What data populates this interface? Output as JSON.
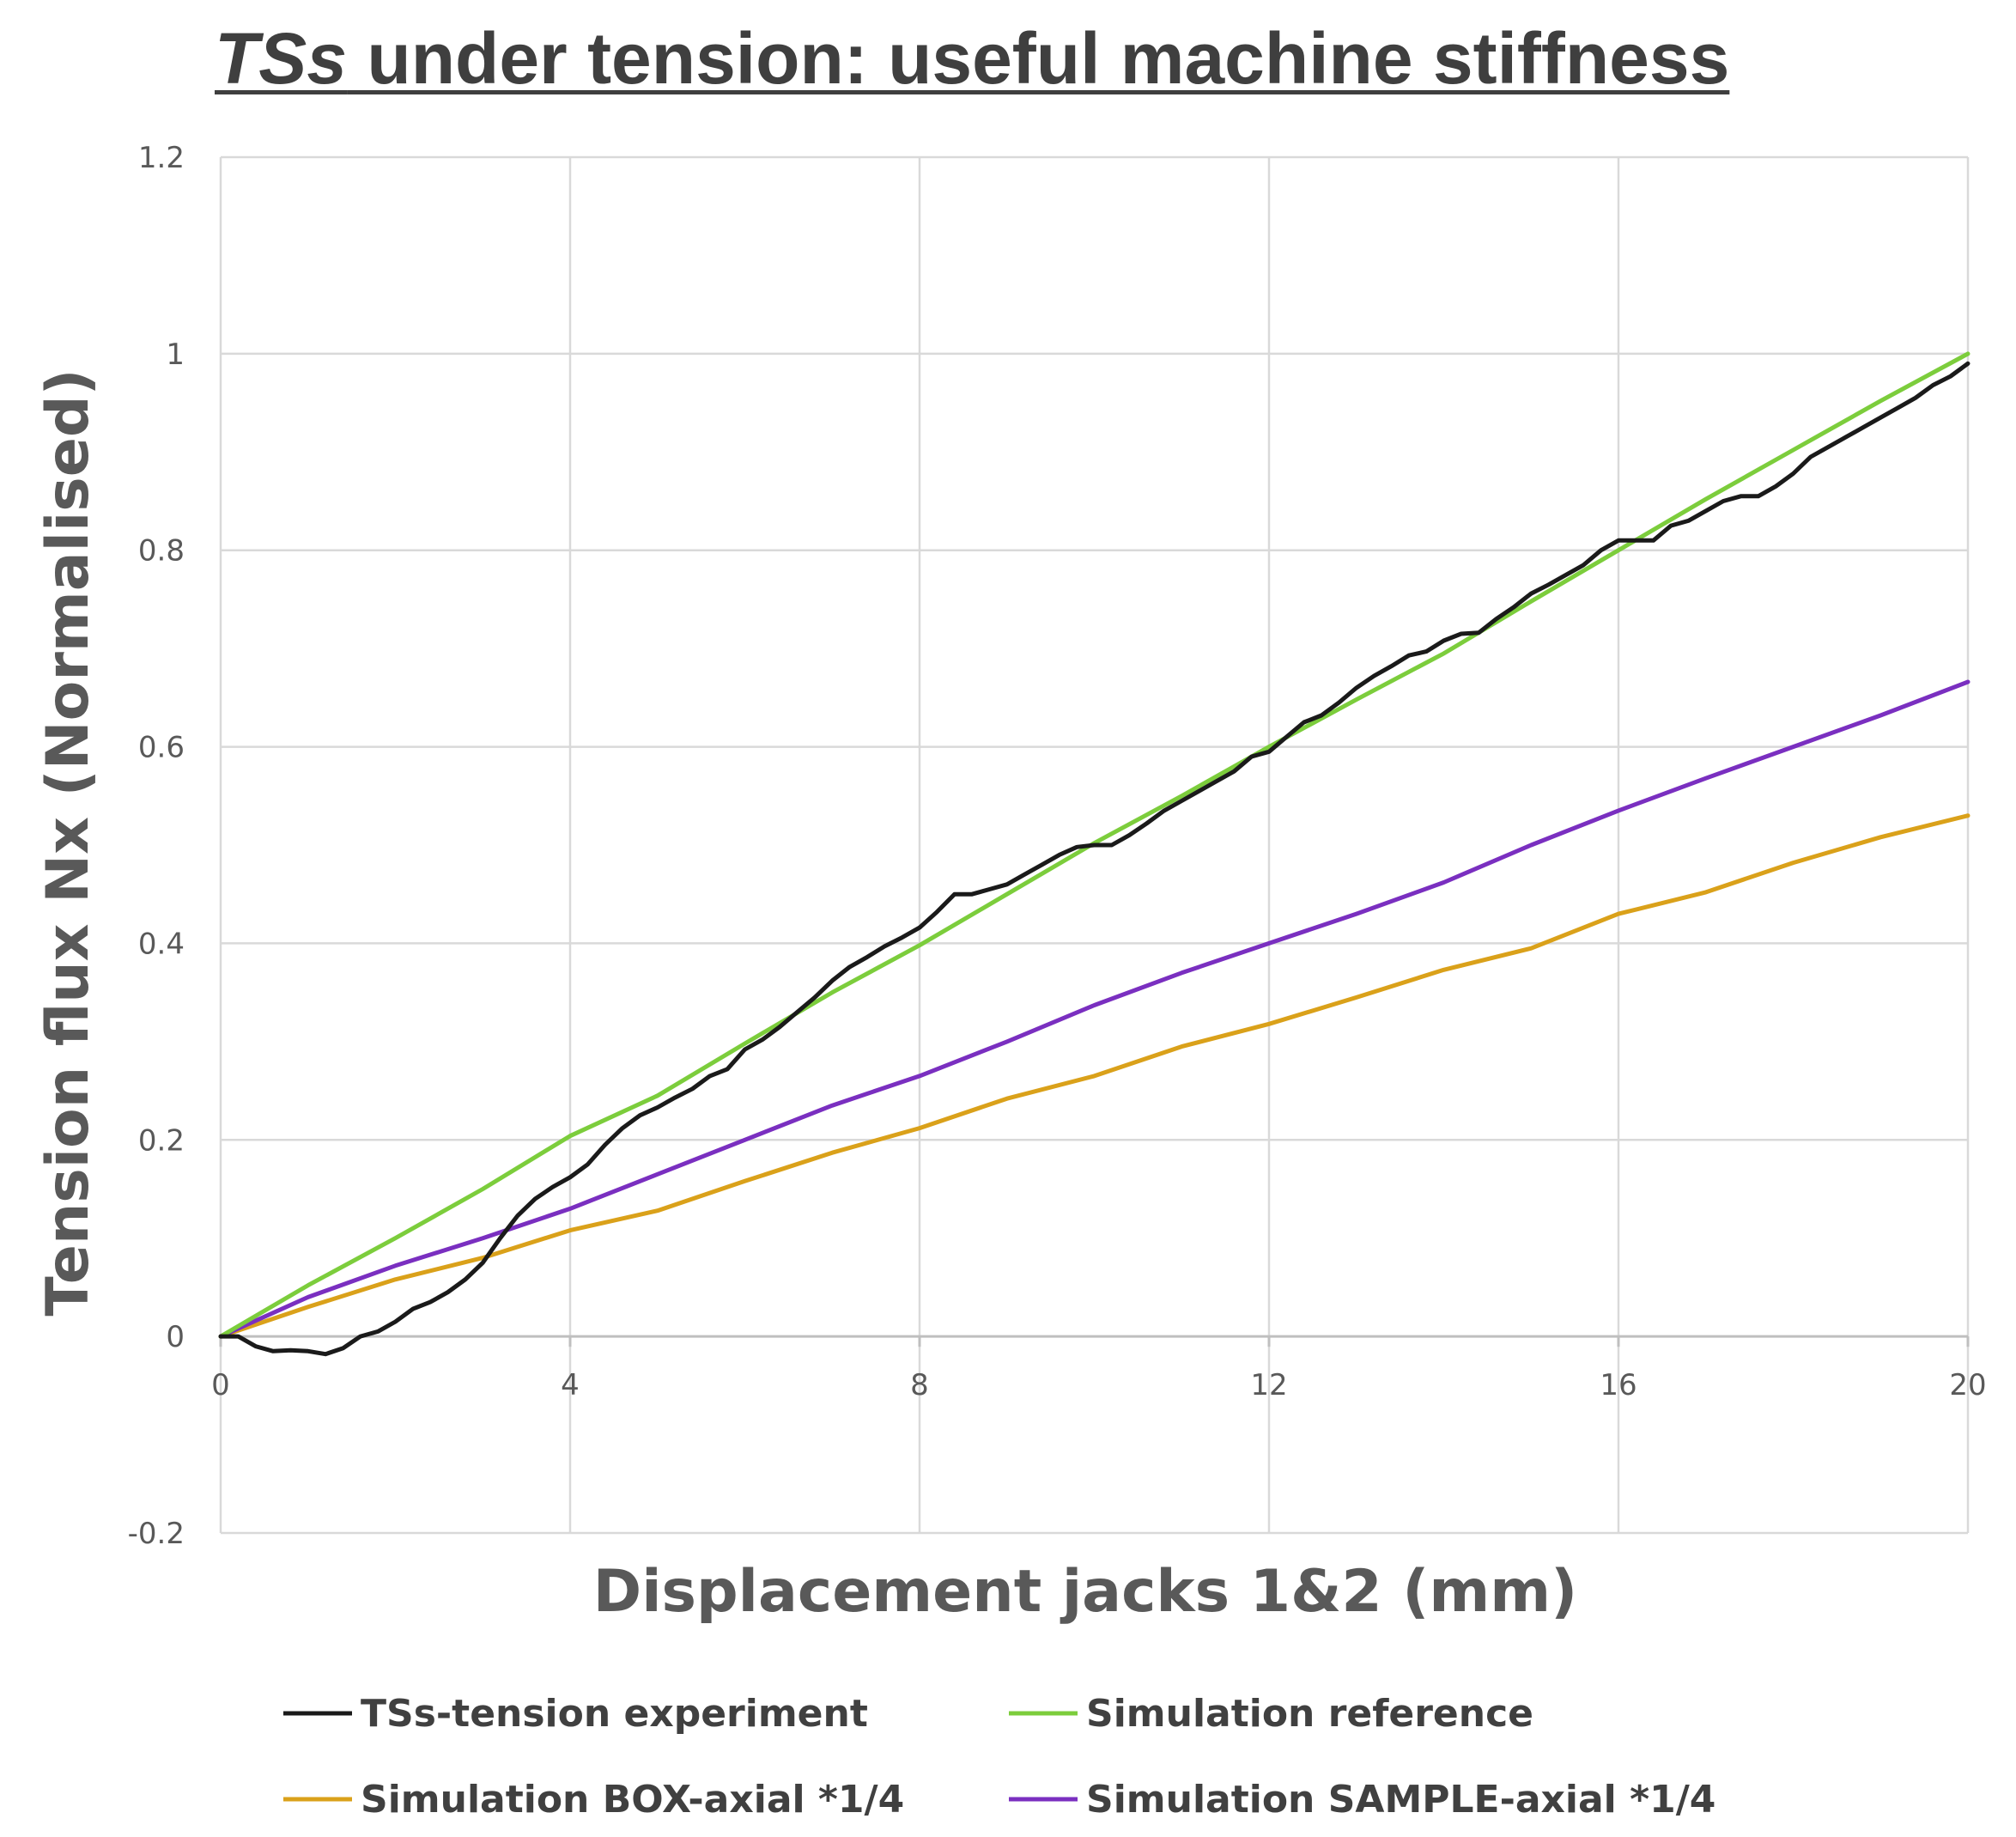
{
  "chart_data": {
    "type": "line",
    "title_italic": "TSs",
    "title_rest": " under tension: useful machine stiffness",
    "xlabel": "Displacement jacks 1&2 (mm)",
    "ylabel": "Tension flux Nx (Normalised)",
    "xlim": [
      0,
      20
    ],
    "ylim": [
      -0.2,
      1.2
    ],
    "x_ticks": [
      0,
      4,
      8,
      12,
      16,
      20
    ],
    "y_ticks": [
      -0.2,
      0,
      0.2,
      0.4,
      0.6,
      0.8,
      1,
      1.2
    ],
    "x_tick_labels": [
      "0",
      "4",
      "8",
      "12",
      "16",
      "20"
    ],
    "y_tick_labels": [
      "-0.2",
      "0",
      "0.2",
      "0.4",
      "0.6",
      "0.8",
      "1",
      "1.2"
    ],
    "grid": true,
    "legend_position": "bottom",
    "series": [
      {
        "name": "TSs-tension experiment",
        "color": "#1a1a1a",
        "x": [
          0,
          0.2,
          0.4,
          0.6,
          0.8,
          1.0,
          1.2,
          1.4,
          1.6,
          1.8,
          2.0,
          2.2,
          2.4,
          2.6,
          2.8,
          3.0,
          3.2,
          3.4,
          3.6,
          3.8,
          4.0,
          4.2,
          4.4,
          4.6,
          4.8,
          5.0,
          5.2,
          5.4,
          5.6,
          5.8,
          6.0,
          6.2,
          6.4,
          6.6,
          6.8,
          7.0,
          7.2,
          7.4,
          7.6,
          7.8,
          8.0,
          8.2,
          8.4,
          8.6,
          8.8,
          9.0,
          9.2,
          9.4,
          9.6,
          9.8,
          10.0,
          10.2,
          10.4,
          10.6,
          10.8,
          11.0,
          11.2,
          11.4,
          11.6,
          11.8,
          12.0,
          12.2,
          12.4,
          12.6,
          12.8,
          13.0,
          13.2,
          13.4,
          13.6,
          13.8,
          14.0,
          14.2,
          14.4,
          14.6,
          14.8,
          15.0,
          15.2,
          15.4,
          15.6,
          15.8,
          16.0,
          16.2,
          16.4,
          16.6,
          16.8,
          17.0,
          17.2,
          17.4,
          17.6,
          17.8,
          18.0,
          18.2,
          18.4,
          18.6,
          18.8,
          19.0,
          19.2,
          19.4,
          19.6,
          19.8,
          20.0
        ],
        "y": [
          0,
          0,
          -0.01,
          -0.015,
          -0.014,
          -0.015,
          -0.018,
          -0.012,
          0.0,
          0.005,
          0.015,
          0.028,
          0.035,
          0.045,
          0.058,
          0.075,
          0.1,
          0.123,
          0.14,
          0.152,
          0.162,
          0.175,
          0.195,
          0.212,
          0.225,
          0.233,
          0.243,
          0.252,
          0.265,
          0.272,
          0.292,
          0.302,
          0.315,
          0.33,
          0.345,
          0.362,
          0.376,
          0.386,
          0.397,
          0.406,
          0.416,
          0.432,
          0.45,
          0.45,
          0.455,
          0.46,
          0.47,
          0.48,
          0.49,
          0.498,
          0.5,
          0.5,
          0.51,
          0.522,
          0.535,
          0.545,
          0.555,
          0.565,
          0.575,
          0.59,
          0.595,
          0.61,
          0.625,
          0.632,
          0.645,
          0.66,
          0.672,
          0.682,
          0.693,
          0.697,
          0.708,
          0.715,
          0.716,
          0.73,
          0.742,
          0.756,
          0.765,
          0.775,
          0.785,
          0.8,
          0.81,
          0.81,
          0.81,
          0.825,
          0.83,
          0.84,
          0.85,
          0.855,
          0.855,
          0.865,
          0.878,
          0.895,
          0.905,
          0.915,
          0.925,
          0.935,
          0.945,
          0.955,
          0.968,
          0.977,
          0.99
        ]
      },
      {
        "name": "Simulation reference",
        "color": "#7ccd3c",
        "x": [
          0,
          1,
          2,
          3,
          4,
          5,
          6,
          7,
          8,
          9,
          10,
          11,
          12,
          13,
          14,
          15,
          16,
          17,
          18,
          19,
          20
        ],
        "y": [
          0,
          0.052,
          0.1,
          0.15,
          0.204,
          0.245,
          0.298,
          0.35,
          0.398,
          0.45,
          0.502,
          0.55,
          0.6,
          0.648,
          0.695,
          0.748,
          0.8,
          0.852,
          0.902,
          0.952,
          1.0
        ]
      },
      {
        "name": "Simulation BOX-axial *1/4",
        "color": "#daa11a",
        "x": [
          0,
          1,
          2,
          3,
          4,
          5,
          6,
          7,
          8,
          9,
          10,
          11,
          12,
          13,
          14,
          15,
          16,
          17,
          18,
          19,
          20
        ],
        "y": [
          0,
          0.03,
          0.058,
          0.08,
          0.108,
          0.128,
          0.158,
          0.187,
          0.212,
          0.242,
          0.265,
          0.295,
          0.318,
          0.345,
          0.373,
          0.395,
          0.43,
          0.452,
          0.482,
          0.508,
          0.53
        ]
      },
      {
        "name": "Simulation SAMPLE-axial *1/4",
        "color": "#7a2fc0",
        "x": [
          0,
          1,
          2,
          3,
          4,
          5,
          6,
          7,
          8,
          9,
          10,
          11,
          12,
          13,
          14,
          15,
          16,
          17,
          18,
          19,
          20
        ],
        "y": [
          0,
          0.04,
          0.072,
          0.1,
          0.13,
          0.165,
          0.2,
          0.235,
          0.265,
          0.3,
          0.337,
          0.37,
          0.4,
          0.43,
          0.462,
          0.5,
          0.535,
          0.568,
          0.6,
          0.632,
          0.666
        ]
      }
    ]
  }
}
